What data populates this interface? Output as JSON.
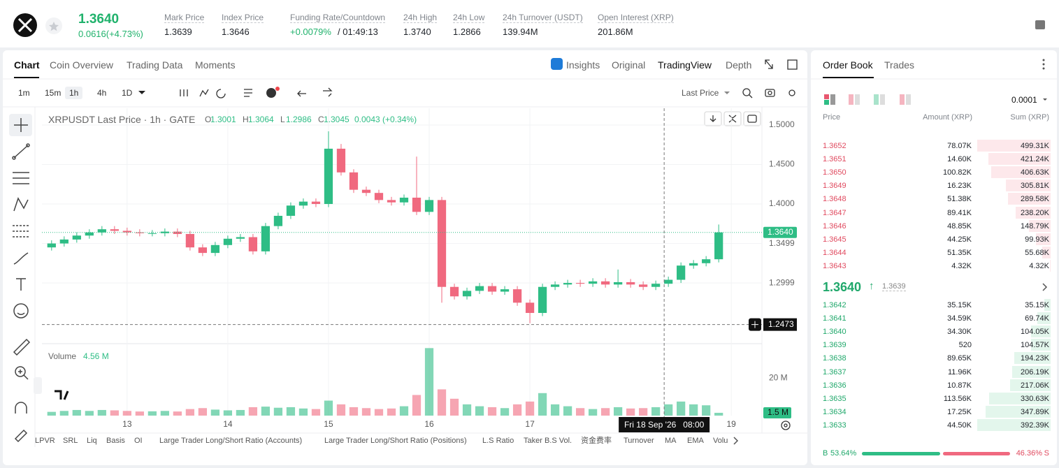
{
  "header": {
    "price": "1.3640",
    "change": "0.0616(+4.73%)",
    "stats": [
      {
        "label": "Mark Price",
        "value": "1.3639"
      },
      {
        "label": "Index Price",
        "value": "1.3646"
      },
      {
        "label": "Funding Rate/Countdown",
        "value": "+0.0079%",
        "extra": "/ 01:49:13"
      },
      {
        "label": "24h High",
        "value": "1.3740"
      },
      {
        "label": "24h Low",
        "value": "1.2866"
      },
      {
        "label": "24h Turnover (USDT)",
        "value": "139.94M"
      },
      {
        "label": "Open Interest (XRP)",
        "value": "201.86M"
      }
    ]
  },
  "chart_tabs": [
    "Chart",
    "Coin Overview",
    "Trading Data",
    "Moments"
  ],
  "view_tabs": [
    "Insights",
    "Original",
    "TradingView",
    "Depth"
  ],
  "intervals": [
    "1m",
    "15m",
    "1h",
    "4h",
    "1D"
  ],
  "price_type": "Last Price",
  "legend": {
    "symbol": "XRPUSDT Last Price · 1h · GATE",
    "ohlc": [
      {
        "key": "O",
        "value": "1.3001"
      },
      {
        "key": "H",
        "value": "1.3064"
      },
      {
        "key": "L",
        "value": "1.2986"
      },
      {
        "key": "C",
        "value": "1.3045"
      }
    ],
    "change": "0.0043 (+0.34%)"
  },
  "volume_legend": {
    "label": "Volume",
    "value": "4.56 M"
  },
  "chart_data": {
    "type": "candlestick",
    "up_color": "#2ebd85",
    "down_color": "#f0697f",
    "x": [
      -18,
      -15,
      -12,
      -9,
      -6,
      -3,
      0,
      3,
      6,
      9,
      12,
      15,
      18,
      21,
      24,
      27,
      30,
      33,
      36,
      39,
      42,
      45,
      48,
      51,
      54,
      57,
      60,
      63,
      66,
      69,
      72,
      75,
      78,
      81,
      84,
      87,
      90,
      93,
      96,
      99,
      102,
      105,
      108,
      111,
      114,
      117,
      120,
      123,
      126,
      129,
      132,
      135,
      138,
      141
    ],
    "open": [
      1.345,
      1.35,
      1.355,
      1.36,
      1.364,
      1.368,
      1.366,
      1.364,
      1.363,
      1.363,
      1.365,
      1.362,
      1.345,
      1.338,
      1.348,
      1.356,
      1.358,
      1.34,
      1.372,
      1.385,
      1.398,
      1.403,
      1.4,
      1.47,
      1.44,
      1.418,
      1.414,
      1.405,
      1.402,
      1.408,
      1.39,
      1.405,
      1.295,
      1.283,
      1.29,
      1.296,
      1.289,
      1.292,
      1.275,
      1.262,
      1.295,
      1.298,
      1.3,
      1.299,
      1.302,
      1.298,
      1.301,
      1.298,
      1.295,
      1.299,
      1.304,
      1.322,
      1.325,
      1.33
    ],
    "high": [
      1.354,
      1.359,
      1.364,
      1.368,
      1.372,
      1.372,
      1.37,
      1.368,
      1.367,
      1.369,
      1.369,
      1.366,
      1.349,
      1.352,
      1.36,
      1.362,
      1.362,
      1.376,
      1.389,
      1.402,
      1.407,
      1.407,
      1.492,
      1.476,
      1.444,
      1.422,
      1.418,
      1.409,
      1.412,
      1.46,
      1.409,
      1.409,
      1.299,
      1.294,
      1.3,
      1.3,
      1.296,
      1.296,
      1.279,
      1.299,
      1.302,
      1.304,
      1.304,
      1.306,
      1.306,
      1.317,
      1.305,
      1.302,
      1.303,
      1.308,
      1.326,
      1.329,
      1.334,
      1.374
    ],
    "low": [
      1.341,
      1.346,
      1.351,
      1.356,
      1.36,
      1.362,
      1.36,
      1.359,
      1.359,
      1.359,
      1.358,
      1.341,
      1.334,
      1.334,
      1.344,
      1.352,
      1.336,
      1.336,
      1.368,
      1.381,
      1.394,
      1.396,
      1.396,
      1.436,
      1.414,
      1.41,
      1.401,
      1.398,
      1.398,
      1.386,
      1.386,
      1.275,
      1.279,
      1.279,
      1.286,
      1.285,
      1.285,
      1.271,
      1.249,
      1.258,
      1.291,
      1.294,
      1.295,
      1.295,
      1.294,
      1.294,
      1.294,
      1.291,
      1.291,
      1.295,
      1.3,
      1.318,
      1.321,
      1.326
    ],
    "close": [
      1.35,
      1.355,
      1.36,
      1.364,
      1.368,
      1.366,
      1.364,
      1.363,
      1.363,
      1.365,
      1.362,
      1.345,
      1.338,
      1.348,
      1.356,
      1.358,
      1.34,
      1.372,
      1.385,
      1.398,
      1.403,
      1.4,
      1.47,
      1.44,
      1.418,
      1.414,
      1.405,
      1.402,
      1.408,
      1.39,
      1.405,
      1.295,
      1.283,
      1.29,
      1.296,
      1.289,
      1.292,
      1.275,
      1.262,
      1.295,
      1.298,
      1.3,
      1.299,
      1.302,
      1.298,
      1.301,
      1.298,
      1.295,
      1.299,
      1.304,
      1.322,
      1.325,
      1.33,
      1.364
    ],
    "xlim": [
      -20.3,
      151.3
    ],
    "xticks": [
      {
        "value": 0,
        "label": "13"
      },
      {
        "value": 24,
        "label": "14"
      },
      {
        "value": 48,
        "label": "15"
      },
      {
        "value": 72,
        "label": "16"
      },
      {
        "value": 96,
        "label": "17"
      },
      {
        "value": 144,
        "label": "19"
      }
    ],
    "ylim": [
      1.2231,
      1.5212
    ],
    "yticks": [
      {
        "value": 1.5,
        "label": "1.5000"
      },
      {
        "value": 1.45,
        "label": "1.4500"
      },
      {
        "value": 1.4,
        "label": "1.4000"
      },
      1.3499,
      1.2999
    ],
    "grid": true,
    "last_price": {
      "value": 1.364,
      "label": "1.3640"
    },
    "crosshair_y": 1.2473,
    "crosshair_x": {
      "value": 128,
      "label": "Fri 18 Sep '26   08:00"
    },
    "volume": {
      "values": [
        2,
        2.5,
        3,
        2.5,
        3,
        2.8,
        2.5,
        2.2,
        2.3,
        2.5,
        2.2,
        3.5,
        4,
        3.2,
        2.8,
        3,
        4.5,
        4.8,
        4.2,
        4.5,
        3.8,
        3.5,
        8,
        6,
        4.5,
        4,
        3.5,
        3.8,
        5,
        11,
        36,
        14,
        9,
        6,
        5,
        4.5,
        4,
        6,
        7.5,
        12,
        6,
        5,
        4,
        3.5,
        4,
        4.5,
        3.8,
        4,
        4.5,
        6,
        7.5,
        6,
        5.5,
        1.5
      ],
      "ylim": [
        0,
        36.5
      ],
      "yticks": [
        {
          "value": 20,
          "label": "20 M"
        }
      ],
      "last": {
        "value": 1.5,
        "label": "1.5 M"
      }
    }
  },
  "indicators": [
    "LPVR",
    "SRL",
    "Liq",
    "Basis",
    "OI",
    "Large Trader Long/Short Ratio (Accounts)",
    "Large Trader Long/Short Ratio (Positions)",
    "L.S Ratio",
    "Taker B.S Vol.",
    "资金费率",
    "Turnover",
    "MA",
    "EMA",
    "Volu"
  ],
  "order_book": {
    "tabs": [
      "Order Book",
      "Trades"
    ],
    "precision": "0.0001",
    "columns": [
      "Price",
      "Amount (XRP)",
      "Sum (XRP)"
    ],
    "asks": [
      {
        "price": "1.3652",
        "amount": "78.07K",
        "sum": {
          "value": 499310,
          "label": "499.31K"
        }
      },
      {
        "price": "1.3651",
        "amount": "14.60K",
        "sum": {
          "value": 421240,
          "label": "421.24K"
        }
      },
      {
        "price": "1.3650",
        "amount": "100.82K",
        "sum": {
          "value": 406630,
          "label": "406.63K"
        }
      },
      {
        "price": "1.3649",
        "amount": "16.23K",
        "sum": {
          "value": 305810,
          "label": "305.81K"
        }
      },
      {
        "price": "1.3648",
        "amount": "51.38K",
        "sum": {
          "value": 289580,
          "label": "289.58K"
        }
      },
      {
        "price": "1.3647",
        "amount": "89.41K",
        "sum": {
          "value": 238200,
          "label": "238.20K"
        }
      },
      {
        "price": "1.3646",
        "amount": "48.85K",
        "sum": {
          "value": 148790,
          "label": "148.79K"
        }
      },
      {
        "price": "1.3645",
        "amount": "44.25K",
        "sum": {
          "value": 99930,
          "label": "99.93K"
        }
      },
      {
        "price": "1.3644",
        "amount": "51.35K",
        "sum": {
          "value": 55680,
          "label": "55.68K"
        }
      },
      {
        "price": "1.3643",
        "amount": "4.32K",
        "sum": {
          "value": 4320,
          "label": "4.32K"
        }
      }
    ],
    "mid": {
      "price": "1.3640",
      "mark": "1.3639"
    },
    "bids": [
      {
        "price": "1.3642",
        "amount": "35.15K",
        "sum": {
          "value": 35150,
          "label": "35.15K"
        }
      },
      {
        "price": "1.3641",
        "amount": "34.59K",
        "sum": {
          "value": 69740,
          "label": "69.74K"
        }
      },
      {
        "price": "1.3640",
        "amount": "34.30K",
        "sum": {
          "value": 104050,
          "label": "104.05K"
        }
      },
      {
        "price": "1.3639",
        "amount": "520",
        "sum": {
          "value": 104570,
          "label": "104.57K"
        }
      },
      {
        "price": "1.3638",
        "amount": "89.65K",
        "sum": {
          "value": 194230,
          "label": "194.23K"
        }
      },
      {
        "price": "1.3637",
        "amount": "11.96K",
        "sum": {
          "value": 206190,
          "label": "206.19K"
        }
      },
      {
        "price": "1.3636",
        "amount": "10.87K",
        "sum": {
          "value": 217060,
          "label": "217.06K"
        }
      },
      {
        "price": "1.3635",
        "amount": "113.56K",
        "sum": {
          "value": 330630,
          "label": "330.63K"
        }
      },
      {
        "price": "1.3634",
        "amount": "17.25K",
        "sum": {
          "value": 347890,
          "label": "347.89K"
        }
      },
      {
        "price": "1.3633",
        "amount": "44.50K",
        "sum": {
          "value": 392390,
          "label": "392.39K"
        }
      }
    ],
    "ratio": {
      "buy_label": "B",
      "buy": {
        "value": 53.64,
        "label": "53.64%"
      },
      "sell": {
        "value": 46.36,
        "label": "46.36%"
      },
      "sell_label": "S"
    }
  }
}
